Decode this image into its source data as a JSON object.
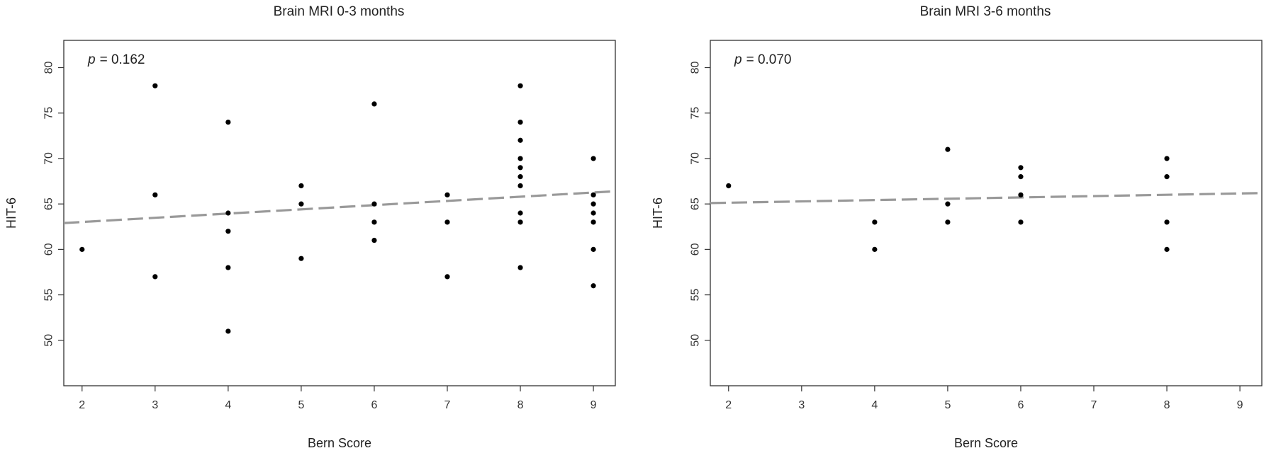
{
  "chart_data": [
    {
      "type": "scatter",
      "title": "Brain MRI 0-3 months",
      "xlabel": "Bern Score",
      "ylabel": "HIT-6",
      "annotation": {
        "p_label": "p",
        "p_value": "= 0.162"
      },
      "xlim": [
        1.75,
        9.3
      ],
      "ylim": [
        45,
        83
      ],
      "xticks": [
        2,
        3,
        4,
        5,
        6,
        7,
        8,
        9
      ],
      "yticks": [
        50,
        55,
        60,
        65,
        70,
        75,
        80
      ],
      "grid": false,
      "points": [
        {
          "x": 2,
          "y": 60
        },
        {
          "x": 3,
          "y": 78
        },
        {
          "x": 3,
          "y": 66
        },
        {
          "x": 3,
          "y": 57
        },
        {
          "x": 4,
          "y": 74
        },
        {
          "x": 4,
          "y": 64
        },
        {
          "x": 4,
          "y": 62
        },
        {
          "x": 4,
          "y": 58
        },
        {
          "x": 4,
          "y": 51
        },
        {
          "x": 5,
          "y": 67
        },
        {
          "x": 5,
          "y": 65
        },
        {
          "x": 5,
          "y": 59
        },
        {
          "x": 6,
          "y": 76
        },
        {
          "x": 6,
          "y": 65
        },
        {
          "x": 6,
          "y": 63
        },
        {
          "x": 6,
          "y": 61
        },
        {
          "x": 7,
          "y": 66
        },
        {
          "x": 7,
          "y": 63
        },
        {
          "x": 7,
          "y": 57
        },
        {
          "x": 8,
          "y": 78
        },
        {
          "x": 8,
          "y": 74
        },
        {
          "x": 8,
          "y": 72
        },
        {
          "x": 8,
          "y": 70
        },
        {
          "x": 8,
          "y": 69
        },
        {
          "x": 8,
          "y": 68
        },
        {
          "x": 8,
          "y": 67
        },
        {
          "x": 8,
          "y": 64
        },
        {
          "x": 8,
          "y": 63
        },
        {
          "x": 8,
          "y": 58
        },
        {
          "x": 9,
          "y": 70
        },
        {
          "x": 9,
          "y": 66
        },
        {
          "x": 9,
          "y": 65
        },
        {
          "x": 9,
          "y": 64
        },
        {
          "x": 9,
          "y": 63
        },
        {
          "x": 9,
          "y": 60
        },
        {
          "x": 9,
          "y": 56
        }
      ],
      "trend_line": {
        "x": [
          1.75,
          9.3
        ],
        "y": [
          62.9,
          66.4
        ],
        "style": "dashed",
        "color": "#999999"
      }
    },
    {
      "type": "scatter",
      "title": "Brain MRI 3-6 months",
      "xlabel": "Bern Score",
      "ylabel": "HIT-6",
      "annotation": {
        "p_label": "p",
        "p_value": "= 0.070"
      },
      "xlim": [
        1.75,
        9.3
      ],
      "ylim": [
        45,
        83
      ],
      "xticks": [
        2,
        3,
        4,
        5,
        6,
        7,
        8,
        9
      ],
      "yticks": [
        50,
        55,
        60,
        65,
        70,
        75,
        80
      ],
      "grid": false,
      "points": [
        {
          "x": 2,
          "y": 67
        },
        {
          "x": 4,
          "y": 63
        },
        {
          "x": 4,
          "y": 60
        },
        {
          "x": 5,
          "y": 71
        },
        {
          "x": 5,
          "y": 65
        },
        {
          "x": 5,
          "y": 63
        },
        {
          "x": 6,
          "y": 69
        },
        {
          "x": 6,
          "y": 68
        },
        {
          "x": 6,
          "y": 66
        },
        {
          "x": 6,
          "y": 63
        },
        {
          "x": 8,
          "y": 70
        },
        {
          "x": 8,
          "y": 68
        },
        {
          "x": 8,
          "y": 63
        },
        {
          "x": 8,
          "y": 60
        }
      ],
      "trend_line": {
        "x": [
          1.75,
          9.3
        ],
        "y": [
          65.1,
          66.2
        ],
        "style": "dashed",
        "color": "#999999"
      }
    }
  ],
  "colors": {
    "point": "#000000",
    "axis": "#333333",
    "trend": "#999999"
  }
}
